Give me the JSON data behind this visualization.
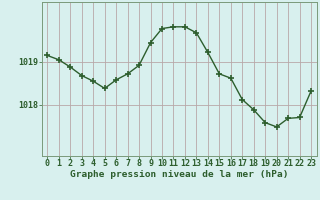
{
  "x": [
    0,
    1,
    2,
    3,
    4,
    5,
    6,
    7,
    8,
    9,
    10,
    11,
    12,
    13,
    14,
    15,
    16,
    17,
    18,
    19,
    20,
    21,
    22,
    23
  ],
  "y": [
    1019.15,
    1019.05,
    1018.88,
    1018.68,
    1018.55,
    1018.38,
    1018.58,
    1018.72,
    1018.92,
    1019.45,
    1019.78,
    1019.82,
    1019.82,
    1019.68,
    1019.22,
    1018.72,
    1018.62,
    1018.12,
    1017.88,
    1017.58,
    1017.48,
    1017.68,
    1017.7,
    1018.32
  ],
  "line_color": "#2d5e2d",
  "marker": "+",
  "marker_size": 4,
  "marker_linewidth": 1.2,
  "linewidth": 1.0,
  "background_color": "#d8f0ee",
  "grid_color": "#b8a8a8",
  "xlabel": "Graphe pression niveau de la mer (hPa)",
  "xlabel_fontsize": 6.8,
  "ylabel_ticks": [
    1018,
    1019
  ],
  "ylim": [
    1016.8,
    1020.4
  ],
  "xlim": [
    -0.5,
    23.5
  ],
  "tick_fontsize": 6.0,
  "border_color": "#7a9a7a"
}
